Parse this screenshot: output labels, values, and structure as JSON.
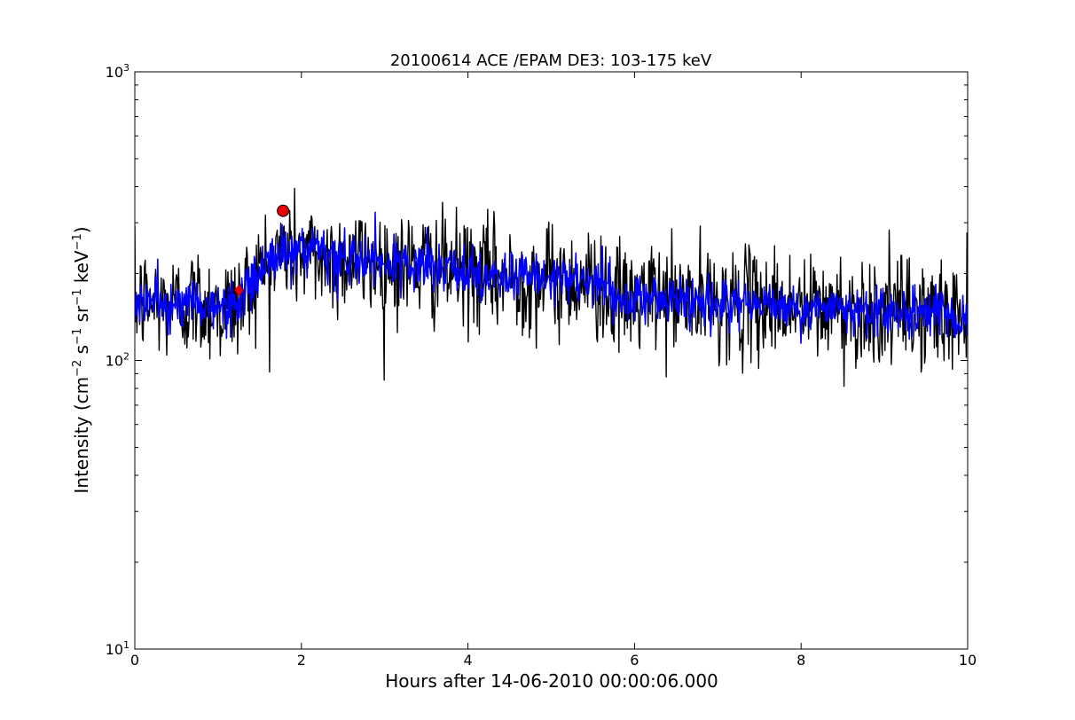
{
  "chart_data": {
    "type": "line",
    "title": "20100614 ACE /EPAM DE3: 103-175 keV",
    "xlabel": "Hours after 14-06-2010 00:00:06.000",
    "ylabel": {
      "prefix": "Intensity (cm",
      "sup1": "−2",
      "mid1": " s",
      "sup2": "−1",
      "mid2": " sr",
      "sup3": "−1",
      "mid3": " keV",
      "sup4": "−1",
      "suffix": ")"
    },
    "xlim": [
      0,
      10
    ],
    "ylim": [
      10,
      1000
    ],
    "yscale": "log",
    "grid": false,
    "x_ticks": [
      {
        "value": 0,
        "label": "0"
      },
      {
        "value": 2,
        "label": "2"
      },
      {
        "value": 4,
        "label": "4"
      },
      {
        "value": 6,
        "label": "6"
      },
      {
        "value": 8,
        "label": "8"
      },
      {
        "value": 10,
        "label": "10"
      }
    ],
    "y_ticks": [
      {
        "value": 10,
        "base": "10",
        "exp": "1"
      },
      {
        "value": 100,
        "base": "10",
        "exp": "2"
      },
      {
        "value": 1000,
        "base": "10",
        "exp": "3"
      }
    ],
    "series": [
      {
        "style": "raw",
        "color": "#000000",
        "x": [
          0.0,
          0.25,
          0.5,
          0.75,
          1.0,
          1.25,
          1.4,
          1.6,
          1.8,
          2.0,
          2.2,
          2.4,
          2.6,
          2.8,
          3.0,
          3.2,
          3.4,
          3.6,
          3.8,
          4.0,
          4.2,
          4.4,
          4.6,
          4.8,
          5.0,
          5.2,
          5.4,
          5.6,
          5.8,
          6.0,
          6.2,
          6.4,
          6.6,
          6.8,
          7.0,
          7.2,
          7.4,
          7.6,
          7.8,
          8.0,
          8.2,
          8.4,
          8.6,
          8.8,
          9.0,
          9.2,
          9.4,
          9.6,
          9.8,
          10.0
        ],
        "y": [
          160,
          158,
          155,
          160,
          150,
          158,
          185,
          220,
          240,
          235,
          228,
          222,
          225,
          220,
          215,
          215,
          212,
          210,
          205,
          200,
          198,
          195,
          192,
          192,
          190,
          188,
          186,
          184,
          160,
          162,
          165,
          165,
          160,
          158,
          160,
          158,
          156,
          158,
          155,
          152,
          150,
          150,
          148,
          148,
          146,
          146,
          144,
          144,
          143,
          143
        ],
        "noise": 0.22,
        "samples": 1200
      },
      {
        "style": "smoothed",
        "color": "#0000ff",
        "x": [
          0.0,
          0.25,
          0.5,
          0.75,
          1.0,
          1.25,
          1.4,
          1.6,
          1.8,
          2.0,
          2.2,
          2.4,
          2.6,
          2.8,
          3.0,
          3.2,
          3.4,
          3.6,
          3.8,
          4.0,
          4.2,
          4.4,
          4.6,
          4.8,
          5.0,
          5.2,
          5.4,
          5.6,
          5.8,
          6.0,
          6.2,
          6.4,
          6.6,
          6.8,
          7.0,
          7.2,
          7.4,
          7.6,
          7.8,
          8.0,
          8.2,
          8.4,
          8.6,
          8.8,
          9.0,
          9.2,
          9.4,
          9.6,
          9.8,
          10.0
        ],
        "y": [
          160,
          158,
          155,
          160,
          150,
          158,
          185,
          220,
          240,
          235,
          228,
          222,
          225,
          220,
          215,
          215,
          212,
          210,
          205,
          200,
          198,
          195,
          192,
          192,
          190,
          188,
          186,
          184,
          160,
          162,
          165,
          165,
          160,
          158,
          160,
          158,
          156,
          158,
          155,
          152,
          150,
          150,
          148,
          148,
          146,
          146,
          144,
          144,
          143,
          143
        ],
        "noise": 0.1,
        "samples": 1200
      }
    ],
    "markers": [
      {
        "shape": "diamond",
        "x": 1.25,
        "y": 175,
        "color": "#ee0000"
      },
      {
        "shape": "circle",
        "x": 1.78,
        "y": 330,
        "color": "#ee0000"
      }
    ]
  }
}
